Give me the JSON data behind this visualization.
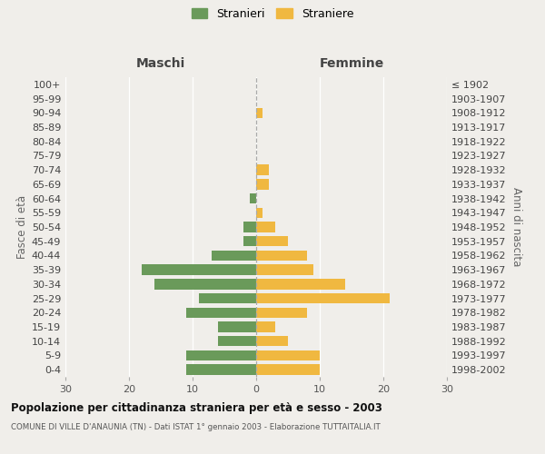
{
  "age_groups": [
    "0-4",
    "5-9",
    "10-14",
    "15-19",
    "20-24",
    "25-29",
    "30-34",
    "35-39",
    "40-44",
    "45-49",
    "50-54",
    "55-59",
    "60-64",
    "65-69",
    "70-74",
    "75-79",
    "80-84",
    "85-89",
    "90-94",
    "95-99",
    "100+"
  ],
  "birth_years": [
    "1998-2002",
    "1993-1997",
    "1988-1992",
    "1983-1987",
    "1978-1982",
    "1973-1977",
    "1968-1972",
    "1963-1967",
    "1958-1962",
    "1953-1957",
    "1948-1952",
    "1943-1947",
    "1938-1942",
    "1933-1937",
    "1928-1932",
    "1923-1927",
    "1918-1922",
    "1913-1917",
    "1908-1912",
    "1903-1907",
    "≤ 1902"
  ],
  "maschi": [
    11,
    11,
    6,
    6,
    11,
    9,
    16,
    18,
    7,
    2,
    2,
    0,
    1,
    0,
    0,
    0,
    0,
    0,
    0,
    0,
    0
  ],
  "femmine": [
    10,
    10,
    5,
    3,
    8,
    21,
    14,
    9,
    8,
    5,
    3,
    1,
    0,
    2,
    2,
    0,
    0,
    0,
    1,
    0,
    0
  ],
  "color_maschi": "#6a9a5a",
  "color_femmine": "#f0b840",
  "title": "Popolazione per cittadinanza straniera per età e sesso - 2003",
  "subtitle": "COMUNE DI VILLE D'ANAUNIA (TN) - Dati ISTAT 1° gennaio 2003 - Elaborazione TUTTAITALIA.IT",
  "legend_maschi": "Stranieri",
  "legend_femmine": "Straniere",
  "header_left": "Maschi",
  "header_right": "Femmine",
  "ylabel_left": "Fasce di età",
  "ylabel_right": "Anni di nascita",
  "xlim": 30,
  "bg_color": "#f0eeea"
}
